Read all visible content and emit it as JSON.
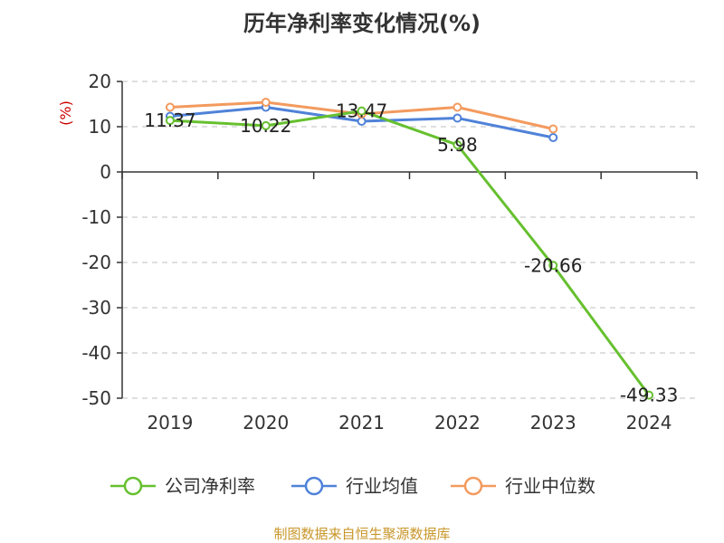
{
  "chart_data": {
    "type": "line",
    "title": "历年净利率变化情况(%)",
    "ylabel": "(%)",
    "xlabel": "",
    "categories": [
      "2019",
      "2020",
      "2021",
      "2022",
      "2023",
      "2024"
    ],
    "ylim": [
      -50,
      20
    ],
    "yticks": [
      20,
      10,
      0,
      -10,
      -20,
      -30,
      -40,
      -50
    ],
    "grid": true,
    "legend_position": "bottom",
    "series": [
      {
        "name": "公司净利率",
        "color": "#66c02f",
        "values": [
          11.37,
          10.22,
          13.47,
          5.98,
          -20.66,
          -49.33
        ],
        "labels": [
          "11.37",
          "10.22",
          "13.47",
          "5.98",
          "-20.66",
          "-49.33"
        ]
      },
      {
        "name": "行业均值",
        "color": "#4f82d8",
        "values": [
          12.3,
          14.3,
          11.2,
          11.9,
          7.6,
          null
        ]
      },
      {
        "name": "行业中位数",
        "color": "#f39a5e",
        "values": [
          14.3,
          15.4,
          12.8,
          14.3,
          9.5,
          null
        ]
      }
    ]
  },
  "source": "制图数据来自恒生聚源数据库",
  "colors": {
    "ylabel": "#cc0000",
    "source": "#c8962a",
    "grid": "#cccccc",
    "axis": "#333333"
  }
}
